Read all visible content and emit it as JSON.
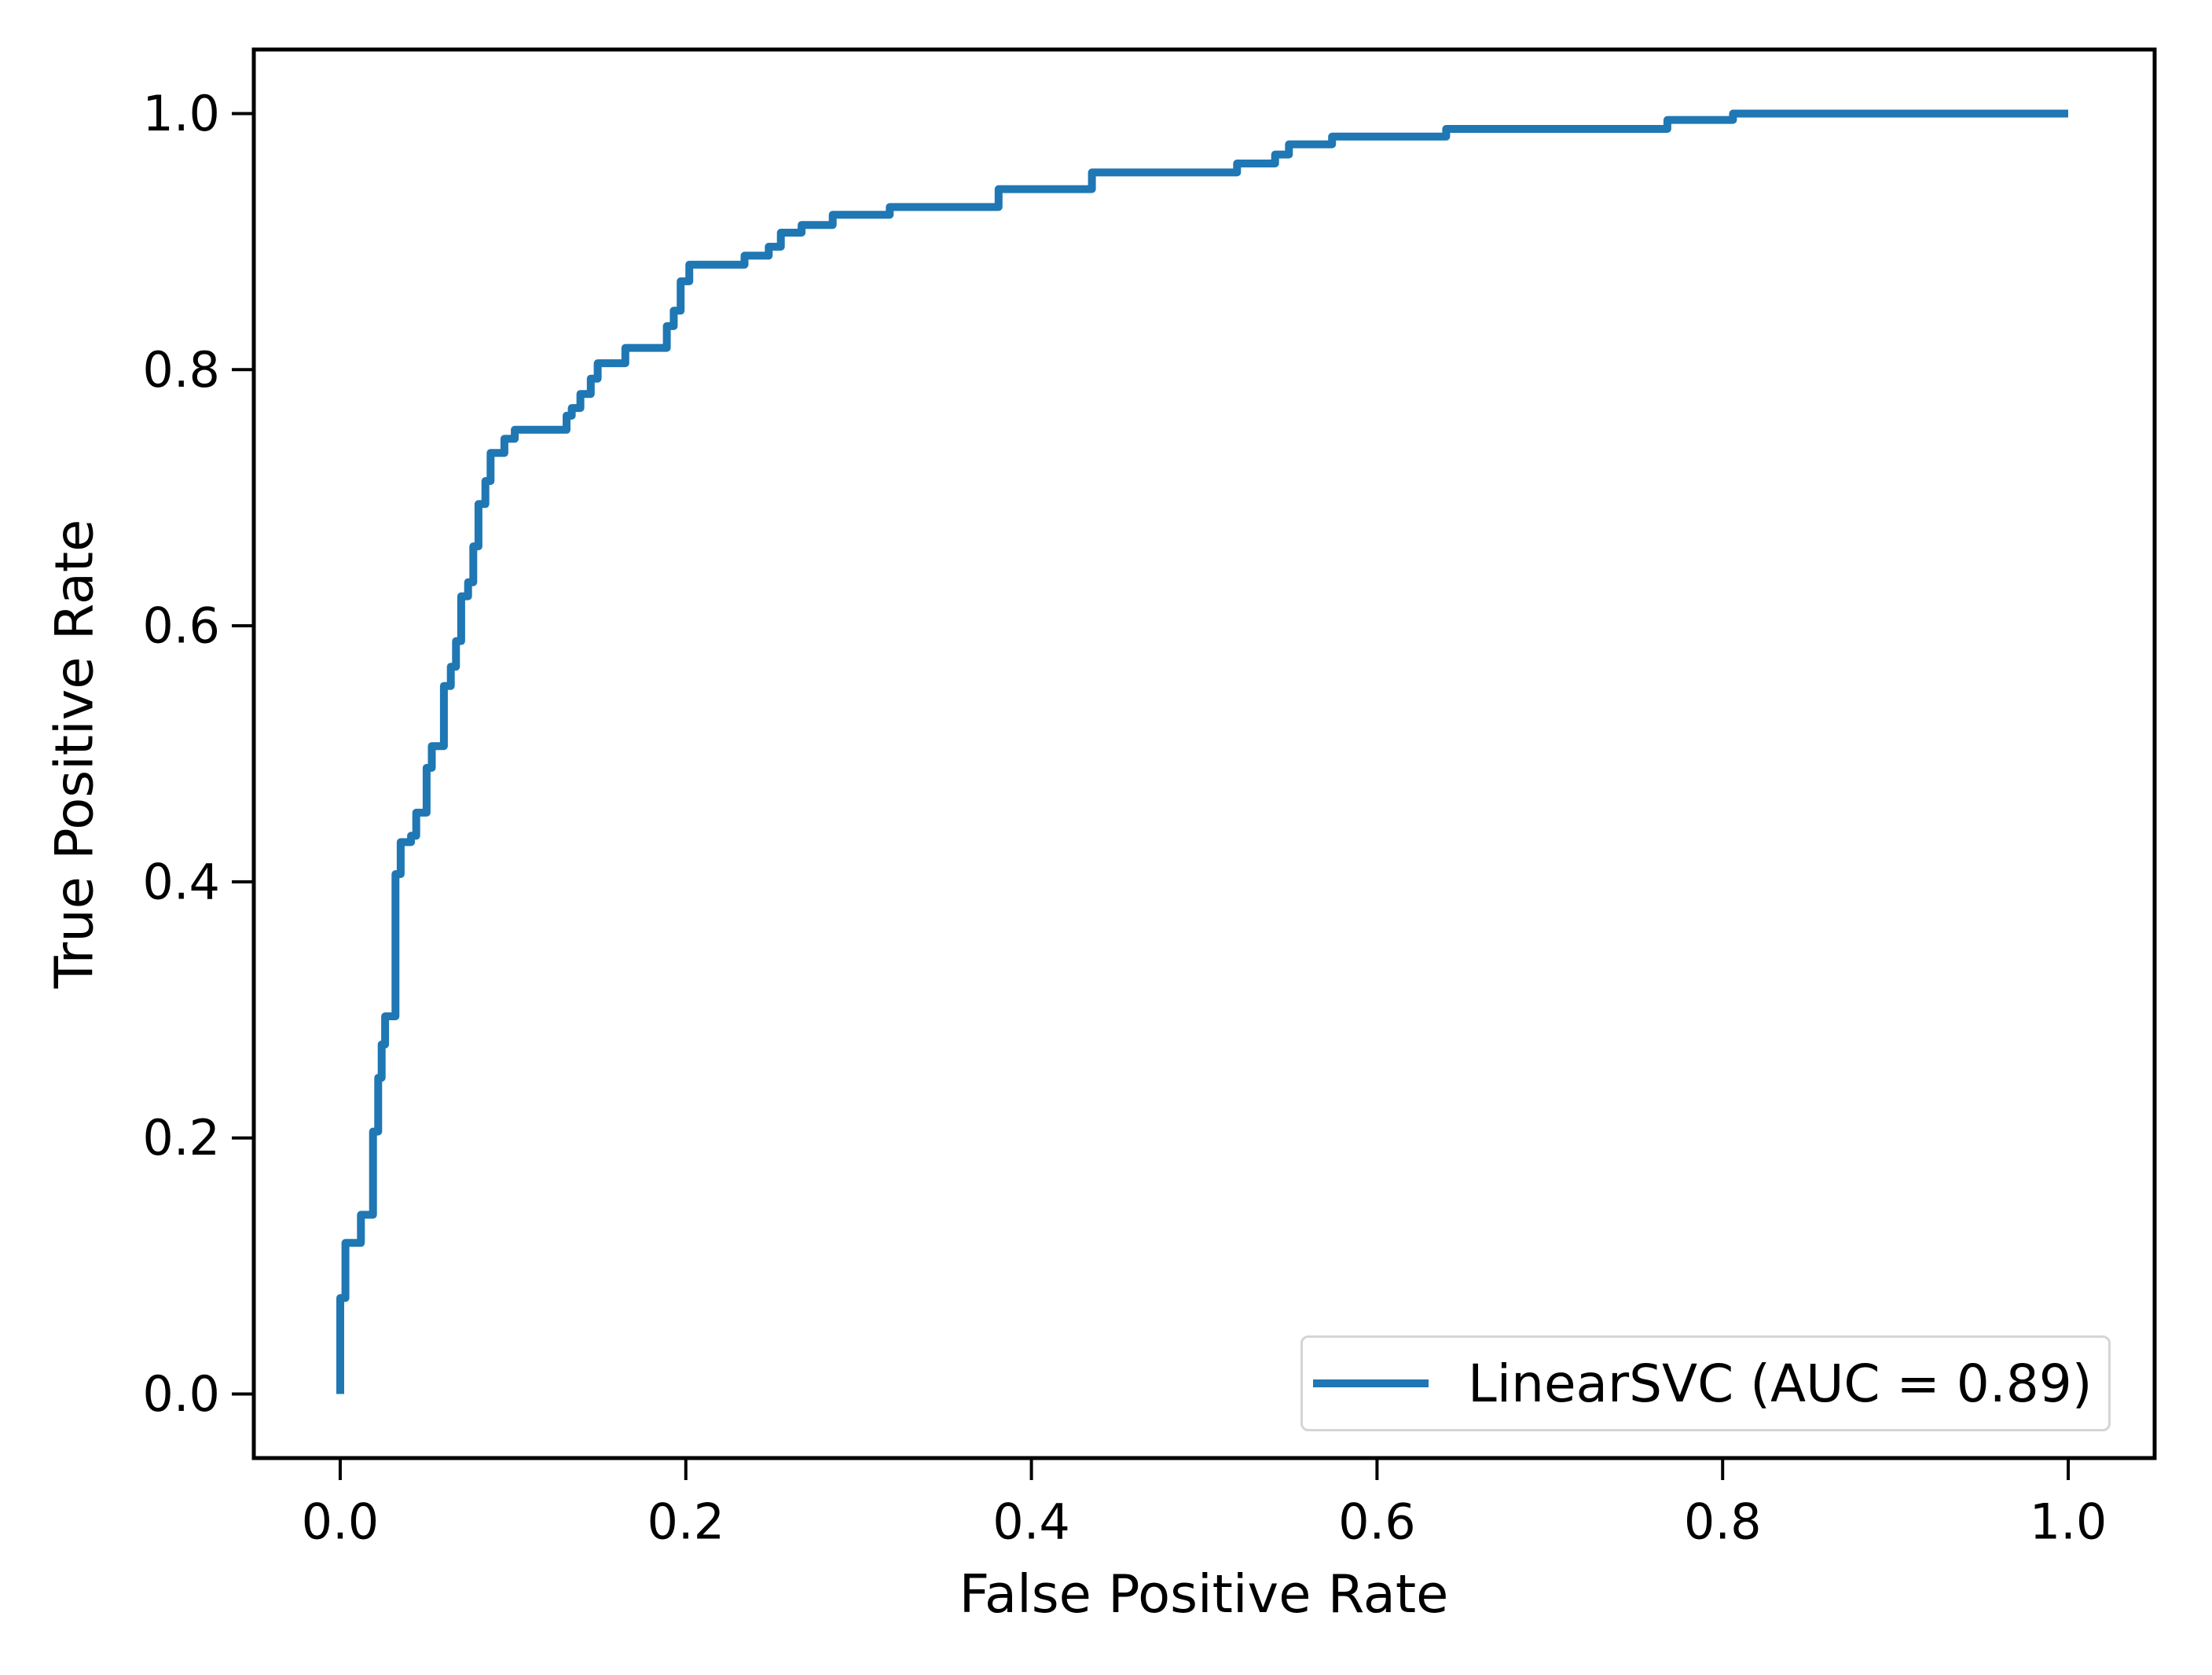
{
  "chart_data": {
    "type": "line",
    "subtype": "roc-step-curve",
    "title": "",
    "xlabel": "False Positive Rate",
    "ylabel": "True Positive Rate",
    "xlim": [
      -0.05,
      1.05
    ],
    "ylim": [
      -0.05,
      1.05
    ],
    "x_ticks": [
      0.0,
      0.2,
      0.4,
      0.6,
      0.8,
      1.0
    ],
    "y_ticks": [
      0.0,
      0.2,
      0.4,
      0.6,
      0.8,
      1.0
    ],
    "tick_label_format": "one-decimal",
    "grid": false,
    "legend": {
      "position": "lower right",
      "label": "LinearSVC (AUC = 0.89)"
    },
    "series": [
      {
        "name": "LinearSVC (AUC = 0.89)",
        "model": "LinearSVC",
        "auc": 0.89,
        "color": "#1f77b4",
        "line_width": 10,
        "points": [
          [
            0.0,
            0.0
          ],
          [
            0.0,
            0.075
          ],
          [
            0.003,
            0.075
          ],
          [
            0.003,
            0.118
          ],
          [
            0.012,
            0.118
          ],
          [
            0.012,
            0.14
          ],
          [
            0.019,
            0.14
          ],
          [
            0.019,
            0.205
          ],
          [
            0.022,
            0.205
          ],
          [
            0.022,
            0.247
          ],
          [
            0.024,
            0.247
          ],
          [
            0.024,
            0.273
          ],
          [
            0.026,
            0.273
          ],
          [
            0.026,
            0.295
          ],
          [
            0.032,
            0.295
          ],
          [
            0.032,
            0.406
          ],
          [
            0.035,
            0.406
          ],
          [
            0.035,
            0.431
          ],
          [
            0.041,
            0.431
          ],
          [
            0.041,
            0.436
          ],
          [
            0.044,
            0.436
          ],
          [
            0.044,
            0.454
          ],
          [
            0.05,
            0.454
          ],
          [
            0.05,
            0.489
          ],
          [
            0.053,
            0.489
          ],
          [
            0.053,
            0.506
          ],
          [
            0.06,
            0.506
          ],
          [
            0.06,
            0.553
          ],
          [
            0.064,
            0.553
          ],
          [
            0.064,
            0.568
          ],
          [
            0.067,
            0.568
          ],
          [
            0.067,
            0.588
          ],
          [
            0.07,
            0.588
          ],
          [
            0.07,
            0.623
          ],
          [
            0.074,
            0.623
          ],
          [
            0.074,
            0.634
          ],
          [
            0.077,
            0.634
          ],
          [
            0.077,
            0.662
          ],
          [
            0.08,
            0.662
          ],
          [
            0.08,
            0.695
          ],
          [
            0.084,
            0.695
          ],
          [
            0.084,
            0.713
          ],
          [
            0.087,
            0.713
          ],
          [
            0.087,
            0.735
          ],
          [
            0.095,
            0.735
          ],
          [
            0.095,
            0.746
          ],
          [
            0.101,
            0.746
          ],
          [
            0.101,
            0.753
          ],
          [
            0.131,
            0.753
          ],
          [
            0.131,
            0.764
          ],
          [
            0.134,
            0.764
          ],
          [
            0.134,
            0.77
          ],
          [
            0.139,
            0.77
          ],
          [
            0.139,
            0.781
          ],
          [
            0.145,
            0.781
          ],
          [
            0.145,
            0.793
          ],
          [
            0.149,
            0.793
          ],
          [
            0.149,
            0.805
          ],
          [
            0.165,
            0.805
          ],
          [
            0.165,
            0.817
          ],
          [
            0.189,
            0.817
          ],
          [
            0.189,
            0.834
          ],
          [
            0.193,
            0.834
          ],
          [
            0.193,
            0.846
          ],
          [
            0.197,
            0.846
          ],
          [
            0.197,
            0.869
          ],
          [
            0.202,
            0.869
          ],
          [
            0.202,
            0.882
          ],
          [
            0.234,
            0.882
          ],
          [
            0.234,
            0.889
          ],
          [
            0.248,
            0.889
          ],
          [
            0.248,
            0.896
          ],
          [
            0.255,
            0.896
          ],
          [
            0.255,
            0.907
          ],
          [
            0.267,
            0.907
          ],
          [
            0.267,
            0.913
          ],
          [
            0.285,
            0.913
          ],
          [
            0.285,
            0.921
          ],
          [
            0.318,
            0.921
          ],
          [
            0.318,
            0.927
          ],
          [
            0.381,
            0.927
          ],
          [
            0.381,
            0.941
          ],
          [
            0.435,
            0.941
          ],
          [
            0.435,
            0.954
          ],
          [
            0.519,
            0.954
          ],
          [
            0.519,
            0.961
          ],
          [
            0.541,
            0.961
          ],
          [
            0.541,
            0.968
          ],
          [
            0.549,
            0.968
          ],
          [
            0.549,
            0.976
          ],
          [
            0.574,
            0.976
          ],
          [
            0.574,
            0.982
          ],
          [
            0.64,
            0.982
          ],
          [
            0.64,
            0.988
          ],
          [
            0.768,
            0.988
          ],
          [
            0.768,
            0.995
          ],
          [
            0.806,
            0.995
          ],
          [
            0.806,
            1.0
          ],
          [
            1.0,
            1.0
          ]
        ]
      }
    ],
    "colors": {
      "curve": "#1f77b4",
      "axis": "#000000",
      "tick_text": "#000000",
      "legend_border": "#d5d5d5",
      "background": "#ffffff"
    }
  }
}
